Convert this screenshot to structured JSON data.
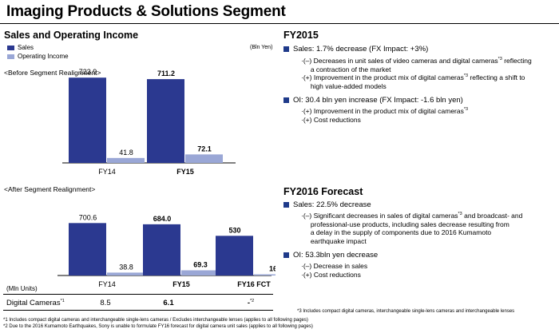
{
  "page": {
    "title": "Imaging Products & Solutions Segment",
    "section_title": "Sales and Operating Income",
    "unit": "(Bln Yen)",
    "legend": [
      {
        "label": "Sales",
        "color": "#2b3990"
      },
      {
        "label": "Operating Income",
        "color": "#9aa7d6"
      }
    ],
    "before_label": "<Before Segment Realignment>",
    "after_label": "<After Segment Realignment>",
    "table": {
      "unit_header": "(Mln Units)",
      "row_label": "Digital Cameras",
      "row_label_note": "*1",
      "values": [
        "8.5",
        "6.1",
        "-"
      ],
      "value_note": "*2"
    },
    "footnotes": [
      "*1 Includes compact digital cameras and interchangeable single-lens cameras / Excludes interchangeable lenses (applies to all following pages)",
      "*2 Due to the 2016 Kumamoto Earthquakes, Sony is unable to formulate FY16 forecast for digital camera unit sales (applies to all following pages)"
    ],
    "right_footnote": "*3 Includes compact digital cameras, interchangeable single-lens cameras and interchangeable lenses"
  },
  "commentary": {
    "fy2015": {
      "title": "FY2015",
      "sales": {
        "headline": "Sales: 1.7% decrease (FX Impact:  +3%)",
        "items": [
          {
            "prefix": "·(–) ",
            "lines": [
              "Decreases in unit sales of video cameras and digital cameras*3 reflecting",
              "a contraction of the market"
            ]
          },
          {
            "prefix": "·(+) ",
            "lines": [
              "Improvement in the product mix of digital cameras*3 reflecting a shift to",
              "high value-added models"
            ]
          }
        ]
      },
      "oi": {
        "headline": "OI: 30.4 bln yen increase (FX Impact:  -1.6 bln yen)",
        "items": [
          {
            "prefix": "·(+) ",
            "lines": [
              "Improvement in the product mix of digital cameras*3"
            ]
          },
          {
            "prefix": "·(+) ",
            "lines": [
              "Cost reductions"
            ]
          }
        ]
      }
    },
    "fy2016": {
      "title": "FY2016 Forecast",
      "sales": {
        "headline": "Sales: 22.5% decrease",
        "items": [
          {
            "prefix": "·(–) ",
            "lines": [
              "Significant decreases in sales of digital cameras*3  and broadcast- and",
              "professional-use products, including sales decrease resulting from",
              "a delay in the supply of components due to 2016 Kumamoto",
              "earthquake impact"
            ]
          }
        ]
      },
      "oi": {
        "headline": "OI: 53.3bln yen decrease",
        "items": [
          {
            "prefix": "·(–) ",
            "lines": [
              "Decrease in sales"
            ]
          },
          {
            "prefix": "·(+) ",
            "lines": [
              "Cost reductions"
            ]
          }
        ]
      }
    }
  },
  "chart_data": [
    {
      "type": "bar",
      "title": "<Before Segment Realignment>",
      "categories": [
        "FY14",
        "FY15"
      ],
      "series": [
        {
          "name": "Sales",
          "values": [
            723.9,
            711.2
          ],
          "labels": [
            "723.9",
            "711.2"
          ]
        },
        {
          "name": "Operating Income",
          "values": [
            41.8,
            72.1
          ],
          "labels": [
            "41.8",
            "72.1"
          ]
        }
      ],
      "ylim": [
        0,
        800
      ]
    },
    {
      "type": "bar",
      "title": "<After Segment Realignment>",
      "categories": [
        "FY14",
        "FY15",
        "FY16 FCT"
      ],
      "series": [
        {
          "name": "Sales",
          "values": [
            700.6,
            684.0,
            530
          ],
          "labels": [
            "700.6",
            "684.0",
            "530"
          ]
        },
        {
          "name": "Operating Income",
          "values": [
            38.8,
            69.3,
            16
          ],
          "labels": [
            "38.8",
            "69.3",
            "16"
          ]
        }
      ],
      "ylim": [
        0,
        800
      ]
    }
  ]
}
